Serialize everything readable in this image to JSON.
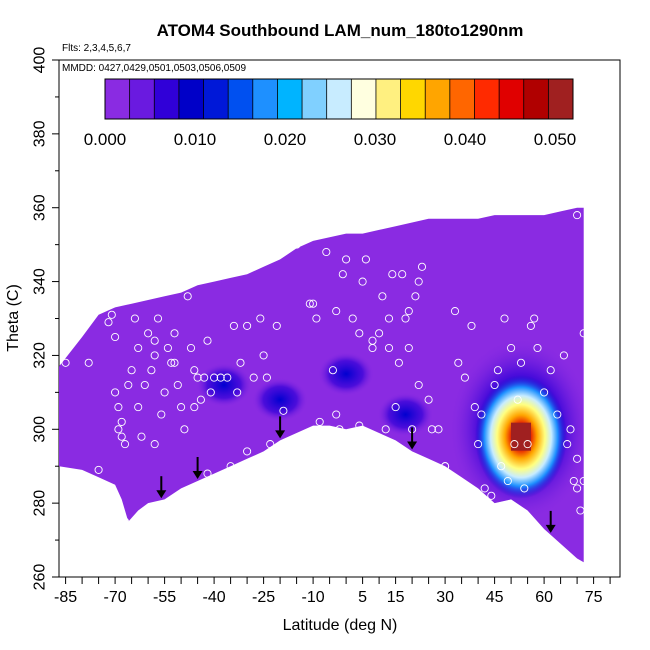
{
  "chart_data": {
    "type": "heatmap",
    "title": "ATOM4 Southbound LAM_num_180to1290nm",
    "subtitle_flights": "Flts: 2,3,4,5,6,7",
    "subtitle_dates": "MMDD: 0427,0429,0501,0503,0506,0509",
    "xlabel": "Latitude (deg N)",
    "ylabel": "Theta (C)",
    "xlim": [
      -87,
      83
    ],
    "ylim": [
      260,
      400
    ],
    "x_tick_labels": [
      -85,
      -70,
      -55,
      -40,
      -25,
      -10,
      5,
      15,
      30,
      45,
      60,
      75
    ],
    "y_tick_labels": [
      260,
      280,
      300,
      320,
      340,
      360,
      380,
      400
    ],
    "colorbar": {
      "range": [
        0,
        0.052
      ],
      "tick_values": [
        0.0,
        0.01,
        0.02,
        0.03,
        0.04,
        0.05
      ],
      "tick_labels": [
        "0.000",
        "0.010",
        "0.020",
        "0.030",
        "0.040",
        "0.050"
      ],
      "colors": [
        "#8a2be2",
        "#6a1ae0",
        "#3000d8",
        "#0000c8",
        "#0018d8",
        "#0050f0",
        "#1e90ff",
        "#00b4ff",
        "#80d0ff",
        "#c8ecff",
        "#ffffe0",
        "#fff080",
        "#ffd700",
        "#ffa500",
        "#ff6600",
        "#ff2a00",
        "#e00000",
        "#b00000",
        "#a02020"
      ]
    },
    "domain_top": [
      [
        -87,
        317
      ],
      [
        -80,
        325
      ],
      [
        -75,
        331
      ],
      [
        -70,
        333
      ],
      [
        -65,
        334
      ],
      [
        -60,
        335
      ],
      [
        -55,
        336
      ],
      [
        -50,
        337
      ],
      [
        -45,
        339
      ],
      [
        -40,
        340
      ],
      [
        -35,
        341
      ],
      [
        -30,
        342
      ],
      [
        -25,
        344
      ],
      [
        -20,
        346
      ],
      [
        -15,
        349
      ],
      [
        -10,
        351
      ],
      [
        -5,
        352
      ],
      [
        0,
        353
      ],
      [
        5,
        353
      ],
      [
        10,
        354
      ],
      [
        15,
        355
      ],
      [
        20,
        356
      ],
      [
        25,
        357
      ],
      [
        30,
        357
      ],
      [
        35,
        357
      ],
      [
        40,
        357
      ],
      [
        45,
        358
      ],
      [
        50,
        358
      ],
      [
        55,
        358
      ],
      [
        60,
        358
      ],
      [
        65,
        359
      ],
      [
        70,
        360
      ],
      [
        72,
        360
      ]
    ],
    "domain_bottom": [
      [
        -87,
        290
      ],
      [
        -80,
        289
      ],
      [
        -75,
        287
      ],
      [
        -70,
        285
      ],
      [
        -68,
        281
      ],
      [
        -66,
        275
      ],
      [
        -63,
        278
      ],
      [
        -60,
        280
      ],
      [
        -55,
        281
      ],
      [
        -50,
        284
      ],
      [
        -45,
        286
      ],
      [
        -40,
        288
      ],
      [
        -35,
        290
      ],
      [
        -30,
        292
      ],
      [
        -25,
        294
      ],
      [
        -20,
        297
      ],
      [
        -15,
        299
      ],
      [
        -10,
        301
      ],
      [
        -5,
        301
      ],
      [
        0,
        300
      ],
      [
        5,
        301
      ],
      [
        10,
        299
      ],
      [
        15,
        297
      ],
      [
        20,
        294
      ],
      [
        25,
        292
      ],
      [
        30,
        290
      ],
      [
        35,
        287
      ],
      [
        40,
        284
      ],
      [
        45,
        280
      ],
      [
        50,
        281
      ],
      [
        55,
        278
      ],
      [
        60,
        273
      ],
      [
        65,
        269
      ],
      [
        70,
        265
      ],
      [
        72,
        264
      ]
    ],
    "hotspot": {
      "x": 53,
      "y": 298,
      "value": 0.052
    },
    "secondary_features": [
      {
        "x": -20,
        "y": 308,
        "value": 0.007
      },
      {
        "x": -37,
        "y": 312,
        "value": 0.006
      },
      {
        "x": 18,
        "y": 304,
        "value": 0.007
      },
      {
        "x": 0,
        "y": 315,
        "value": 0.005
      }
    ],
    "obs_points": [
      [
        -85,
        318
      ],
      [
        -82,
        288
      ],
      [
        -80,
        285
      ],
      [
        -78,
        318
      ],
      [
        -75,
        289
      ],
      [
        -74,
        285
      ],
      [
        -72,
        329
      ],
      [
        -71,
        331
      ],
      [
        -70,
        325
      ],
      [
        -70,
        310
      ],
      [
        -69,
        306
      ],
      [
        -69,
        300
      ],
      [
        -68,
        298
      ],
      [
        -67,
        296
      ],
      [
        -67,
        275
      ],
      [
        -66,
        270
      ],
      [
        -66,
        312
      ],
      [
        -65,
        316
      ],
      [
        -64,
        330
      ],
      [
        -63,
        322
      ],
      [
        -62,
        298
      ],
      [
        -61,
        312
      ],
      [
        -60,
        326
      ],
      [
        -59,
        316
      ],
      [
        -58,
        324
      ],
      [
        -58,
        296
      ],
      [
        -57,
        330
      ],
      [
        -56,
        304
      ],
      [
        -55,
        310
      ],
      [
        -54,
        322
      ],
      [
        -53,
        318
      ],
      [
        -52,
        318
      ],
      [
        -51,
        312
      ],
      [
        -50,
        306
      ],
      [
        -49,
        300
      ],
      [
        -49,
        282
      ],
      [
        -48,
        336
      ],
      [
        -47,
        322
      ],
      [
        -46,
        316
      ],
      [
        -46,
        306
      ],
      [
        -45,
        314
      ],
      [
        -44,
        308
      ],
      [
        -43,
        314
      ],
      [
        -42,
        324
      ],
      [
        -42,
        288
      ],
      [
        -41,
        310
      ],
      [
        -40,
        314
      ],
      [
        -38,
        314
      ],
      [
        -36,
        314
      ],
      [
        -35,
        290
      ],
      [
        -34,
        328
      ],
      [
        -33,
        310
      ],
      [
        -32,
        318
      ],
      [
        -30,
        328
      ],
      [
        -30,
        294
      ],
      [
        -28,
        314
      ],
      [
        -26,
        330
      ],
      [
        -25,
        320
      ],
      [
        -24,
        314
      ],
      [
        -23,
        296
      ],
      [
        -21,
        328
      ],
      [
        -19,
        305
      ],
      [
        -17,
        350
      ],
      [
        -15,
        350
      ],
      [
        -14,
        298
      ],
      [
        -11,
        334
      ],
      [
        -9,
        330
      ],
      [
        -8,
        302
      ],
      [
        -6,
        348
      ],
      [
        -4,
        316
      ],
      [
        -3,
        332
      ],
      [
        -2,
        300
      ],
      [
        -1,
        342
      ],
      [
        0,
        346
      ],
      [
        2,
        330
      ],
      [
        4,
        326
      ],
      [
        4,
        301
      ],
      [
        6,
        346
      ],
      [
        8,
        324
      ],
      [
        9,
        298
      ],
      [
        10,
        326
      ],
      [
        11,
        336
      ],
      [
        12,
        300
      ],
      [
        13,
        322
      ],
      [
        14,
        342
      ],
      [
        15,
        306
      ],
      [
        16,
        318
      ],
      [
        17,
        342
      ],
      [
        18,
        330
      ],
      [
        19,
        332
      ],
      [
        19,
        322
      ],
      [
        20,
        300
      ],
      [
        21,
        336
      ],
      [
        22,
        312
      ],
      [
        23,
        344
      ],
      [
        25,
        308
      ],
      [
        26,
        300
      ],
      [
        28,
        300
      ],
      [
        30,
        290
      ],
      [
        30,
        290
      ],
      [
        33,
        332
      ],
      [
        34,
        318
      ],
      [
        36,
        314
      ],
      [
        38,
        328
      ],
      [
        39,
        306
      ],
      [
        40,
        296
      ],
      [
        41,
        304
      ],
      [
        42,
        284
      ],
      [
        44,
        282
      ],
      [
        45,
        312
      ],
      [
        46,
        316
      ],
      [
        47,
        290
      ],
      [
        48,
        330
      ],
      [
        49,
        286
      ],
      [
        50,
        322
      ],
      [
        51,
        296
      ],
      [
        52,
        308
      ],
      [
        53,
        318
      ],
      [
        54,
        284
      ],
      [
        55,
        296
      ],
      [
        56,
        328
      ],
      [
        57,
        330
      ],
      [
        58,
        322
      ],
      [
        60,
        310
      ],
      [
        62,
        316
      ],
      [
        64,
        304
      ],
      [
        66,
        320
      ],
      [
        67,
        296
      ],
      [
        68,
        300
      ],
      [
        69,
        286
      ],
      [
        70,
        284
      ],
      [
        71,
        278
      ],
      [
        72,
        286
      ],
      [
        72,
        326
      ],
      [
        70,
        358
      ],
      [
        70,
        292
      ],
      [
        -10,
        334
      ],
      [
        -7,
        354
      ],
      [
        5,
        340
      ],
      [
        -3,
        304
      ],
      [
        8,
        322
      ],
      [
        13,
        330
      ],
      [
        22,
        340
      ],
      [
        -52,
        326
      ],
      [
        -58,
        320
      ],
      [
        -63,
        306
      ],
      [
        -68,
        302
      ]
    ],
    "arrows_x": [
      -56,
      -45,
      -20,
      20,
      62
    ]
  }
}
